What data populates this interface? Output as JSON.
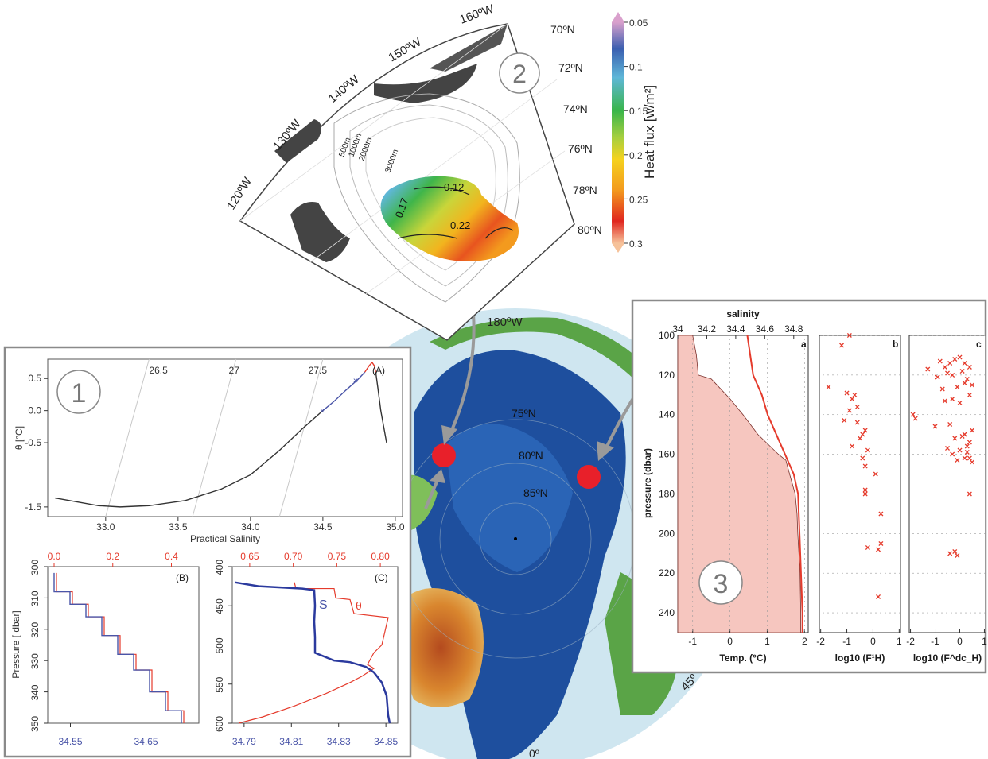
{
  "chart_data": [
    {
      "id": "central_map",
      "type": "map",
      "labels": {
        "lon_top": "180ºW",
        "lat_75": "75ºN",
        "lat_80": "80ºN",
        "lat_85": "85ºN",
        "lon_right": "45º",
        "lon_bottom": "0º"
      }
    },
    {
      "id": "panel2_heatflux_map",
      "type": "heatmap",
      "badge": "2",
      "lon_labels": [
        "160ºW",
        "150ºW",
        "140ºW",
        "130ºW",
        "120ºW"
      ],
      "lat_labels": [
        "70ºN",
        "72ºN",
        "74ºN",
        "76ºN",
        "78ºN",
        "80ºN"
      ],
      "depth_labels": [
        "500m",
        "1000m",
        "2000m",
        "3000m"
      ],
      "contour_labels": [
        "0.12",
        "0.17",
        "0.22"
      ],
      "colorbar": {
        "title": "Heat flux [w/m²]",
        "ticks": [
          "0.05",
          "0.1",
          "0.15",
          "0.2",
          "0.25",
          "0.3"
        ],
        "range": [
          0.05,
          0.3
        ],
        "colors": [
          "#d9a0cc",
          "#3b5fb0",
          "#5fb7d8",
          "#39b54a",
          "#a5cf3f",
          "#f5d21e",
          "#f39a1e",
          "#e0261f",
          "#f6c29a"
        ]
      }
    },
    {
      "id": "panel1A_theta_s",
      "type": "line",
      "badge": "1",
      "tag": "(A)",
      "xlabel": "Practical Salinity",
      "ylabel": "θ [°C]",
      "xlim": [
        32.6,
        35.05
      ],
      "ylim": [
        -1.65,
        0.8
      ],
      "xticks": [
        "33.0",
        "33.5",
        "34.0",
        "34.5",
        "35.0"
      ],
      "yticks": [
        "0.5",
        "0.0",
        "-0.5",
        "-1.5"
      ],
      "isopycnal_labels": [
        "26.5",
        "27",
        "27.5"
      ],
      "series": [
        {
          "color": "#333333",
          "x": [
            32.65,
            32.8,
            32.95,
            33.1,
            33.3,
            33.55,
            33.8,
            34.0,
            34.2,
            34.35,
            34.5
          ],
          "y": [
            -1.36,
            -1.42,
            -1.48,
            -1.5,
            -1.48,
            -1.4,
            -1.22,
            -1.0,
            -0.62,
            -0.3,
            0.0
          ]
        },
        {
          "color": "#4a55a8",
          "x": [
            34.5,
            34.58,
            34.66,
            34.74,
            34.79
          ],
          "y": [
            0.0,
            0.15,
            0.32,
            0.48,
            0.6
          ]
        },
        {
          "color": "#e53b2c",
          "x": [
            34.79,
            34.82,
            34.84,
            34.855,
            34.865
          ],
          "y": [
            0.6,
            0.7,
            0.75,
            0.7,
            0.6
          ]
        },
        {
          "color": "#333333",
          "x": [
            34.865,
            34.88,
            34.9,
            34.92,
            34.94
          ],
          "y": [
            0.6,
            0.35,
            0.0,
            -0.25,
            -0.5
          ]
        }
      ]
    },
    {
      "id": "panel1B_staircase",
      "type": "line",
      "tag": "(B)",
      "ylabel": "Pressure [ dbar]",
      "ylim": [
        300,
        350
      ],
      "yticks": [
        "300",
        "310",
        "320",
        "330",
        "340",
        "350"
      ],
      "top_ticks": [
        "0.0",
        "0.2",
        "0.4"
      ],
      "bottom_ticks": [
        "34.55",
        "34.65"
      ]
    },
    {
      "id": "panel1C_profiles",
      "type": "line",
      "tag": "(C)",
      "ylim": [
        400,
        600
      ],
      "yticks": [
        "400",
        "450",
        "500",
        "550",
        "600"
      ],
      "top_ticks": [
        "0.65",
        "0.70",
        "0.75",
        "0.80"
      ],
      "bottom_ticks": [
        "34.79",
        "34.81",
        "34.83",
        "34.85"
      ],
      "series_labels": [
        "θ",
        "S"
      ]
    },
    {
      "id": "panel3_profiles",
      "type": "scatter",
      "badge": "3",
      "top_axis_title": "salinity",
      "top_ticks": [
        "34",
        "34.2",
        "34.4",
        "34.6",
        "34.8"
      ],
      "ylabel": "pressure (dbar)",
      "ylim": [
        100,
        250
      ],
      "yticks": [
        "100",
        "120",
        "140",
        "160",
        "180",
        "200",
        "220",
        "240"
      ],
      "subpanels": [
        {
          "tag": "a",
          "xlabel": "Temp. (°C)",
          "xticks": [
            "-1",
            "0",
            "1",
            "2"
          ]
        },
        {
          "tag": "b",
          "xlabel": "log10 (F¹H)",
          "xticks": [
            "-2",
            "-1",
            "0",
            "1"
          ],
          "x": [
            -0.9,
            -1.2,
            -1.7,
            -1.0,
            -0.7,
            -0.8,
            -0.6,
            -0.9,
            -1.1,
            -0.6,
            -0.3,
            -0.4,
            -0.5,
            -0.8,
            -0.2,
            -0.4,
            -0.3,
            0.1,
            -0.3,
            -0.3,
            0.3,
            -0.2,
            0.3,
            0.2,
            0.2
          ],
          "y": [
            100,
            105,
            126,
            129,
            130,
            132,
            136,
            138,
            143,
            144,
            148,
            150,
            152,
            156,
            158,
            162,
            166,
            170,
            178,
            180,
            190,
            207,
            205,
            208,
            232
          ]
        },
        {
          "tag": "c",
          "xlabel": "log10 (F^dc_H)",
          "xticks": [
            "-2",
            "-1",
            "0",
            "1"
          ],
          "x": [
            -1.3,
            -0.8,
            -0.6,
            -0.4,
            -0.2,
            0.0,
            0.2,
            0.4,
            -0.9,
            -0.5,
            -0.3,
            0.1,
            0.3,
            -0.7,
            -0.1,
            0.2,
            0.5,
            -1.9,
            -1.8,
            -0.6,
            -0.3,
            0.0,
            0.4,
            -1.0,
            -0.4,
            0.2,
            0.5,
            -0.2,
            0.1,
            0.4,
            -0.5,
            0.0,
            0.3,
            -0.3,
            0.3,
            0.4,
            -0.1,
            0.2,
            0.5,
            0.4,
            -0.4,
            -0.2,
            -0.1
          ],
          "y": [
            117,
            113,
            116,
            114,
            112,
            111,
            114,
            116,
            121,
            119,
            120,
            118,
            122,
            127,
            126,
            124,
            125,
            140,
            142,
            133,
            132,
            134,
            130,
            146,
            145,
            150,
            148,
            152,
            151,
            154,
            157,
            158,
            156,
            160,
            159,
            162,
            163,
            162,
            164,
            180,
            210,
            209,
            211
          ]
        }
      ]
    }
  ]
}
